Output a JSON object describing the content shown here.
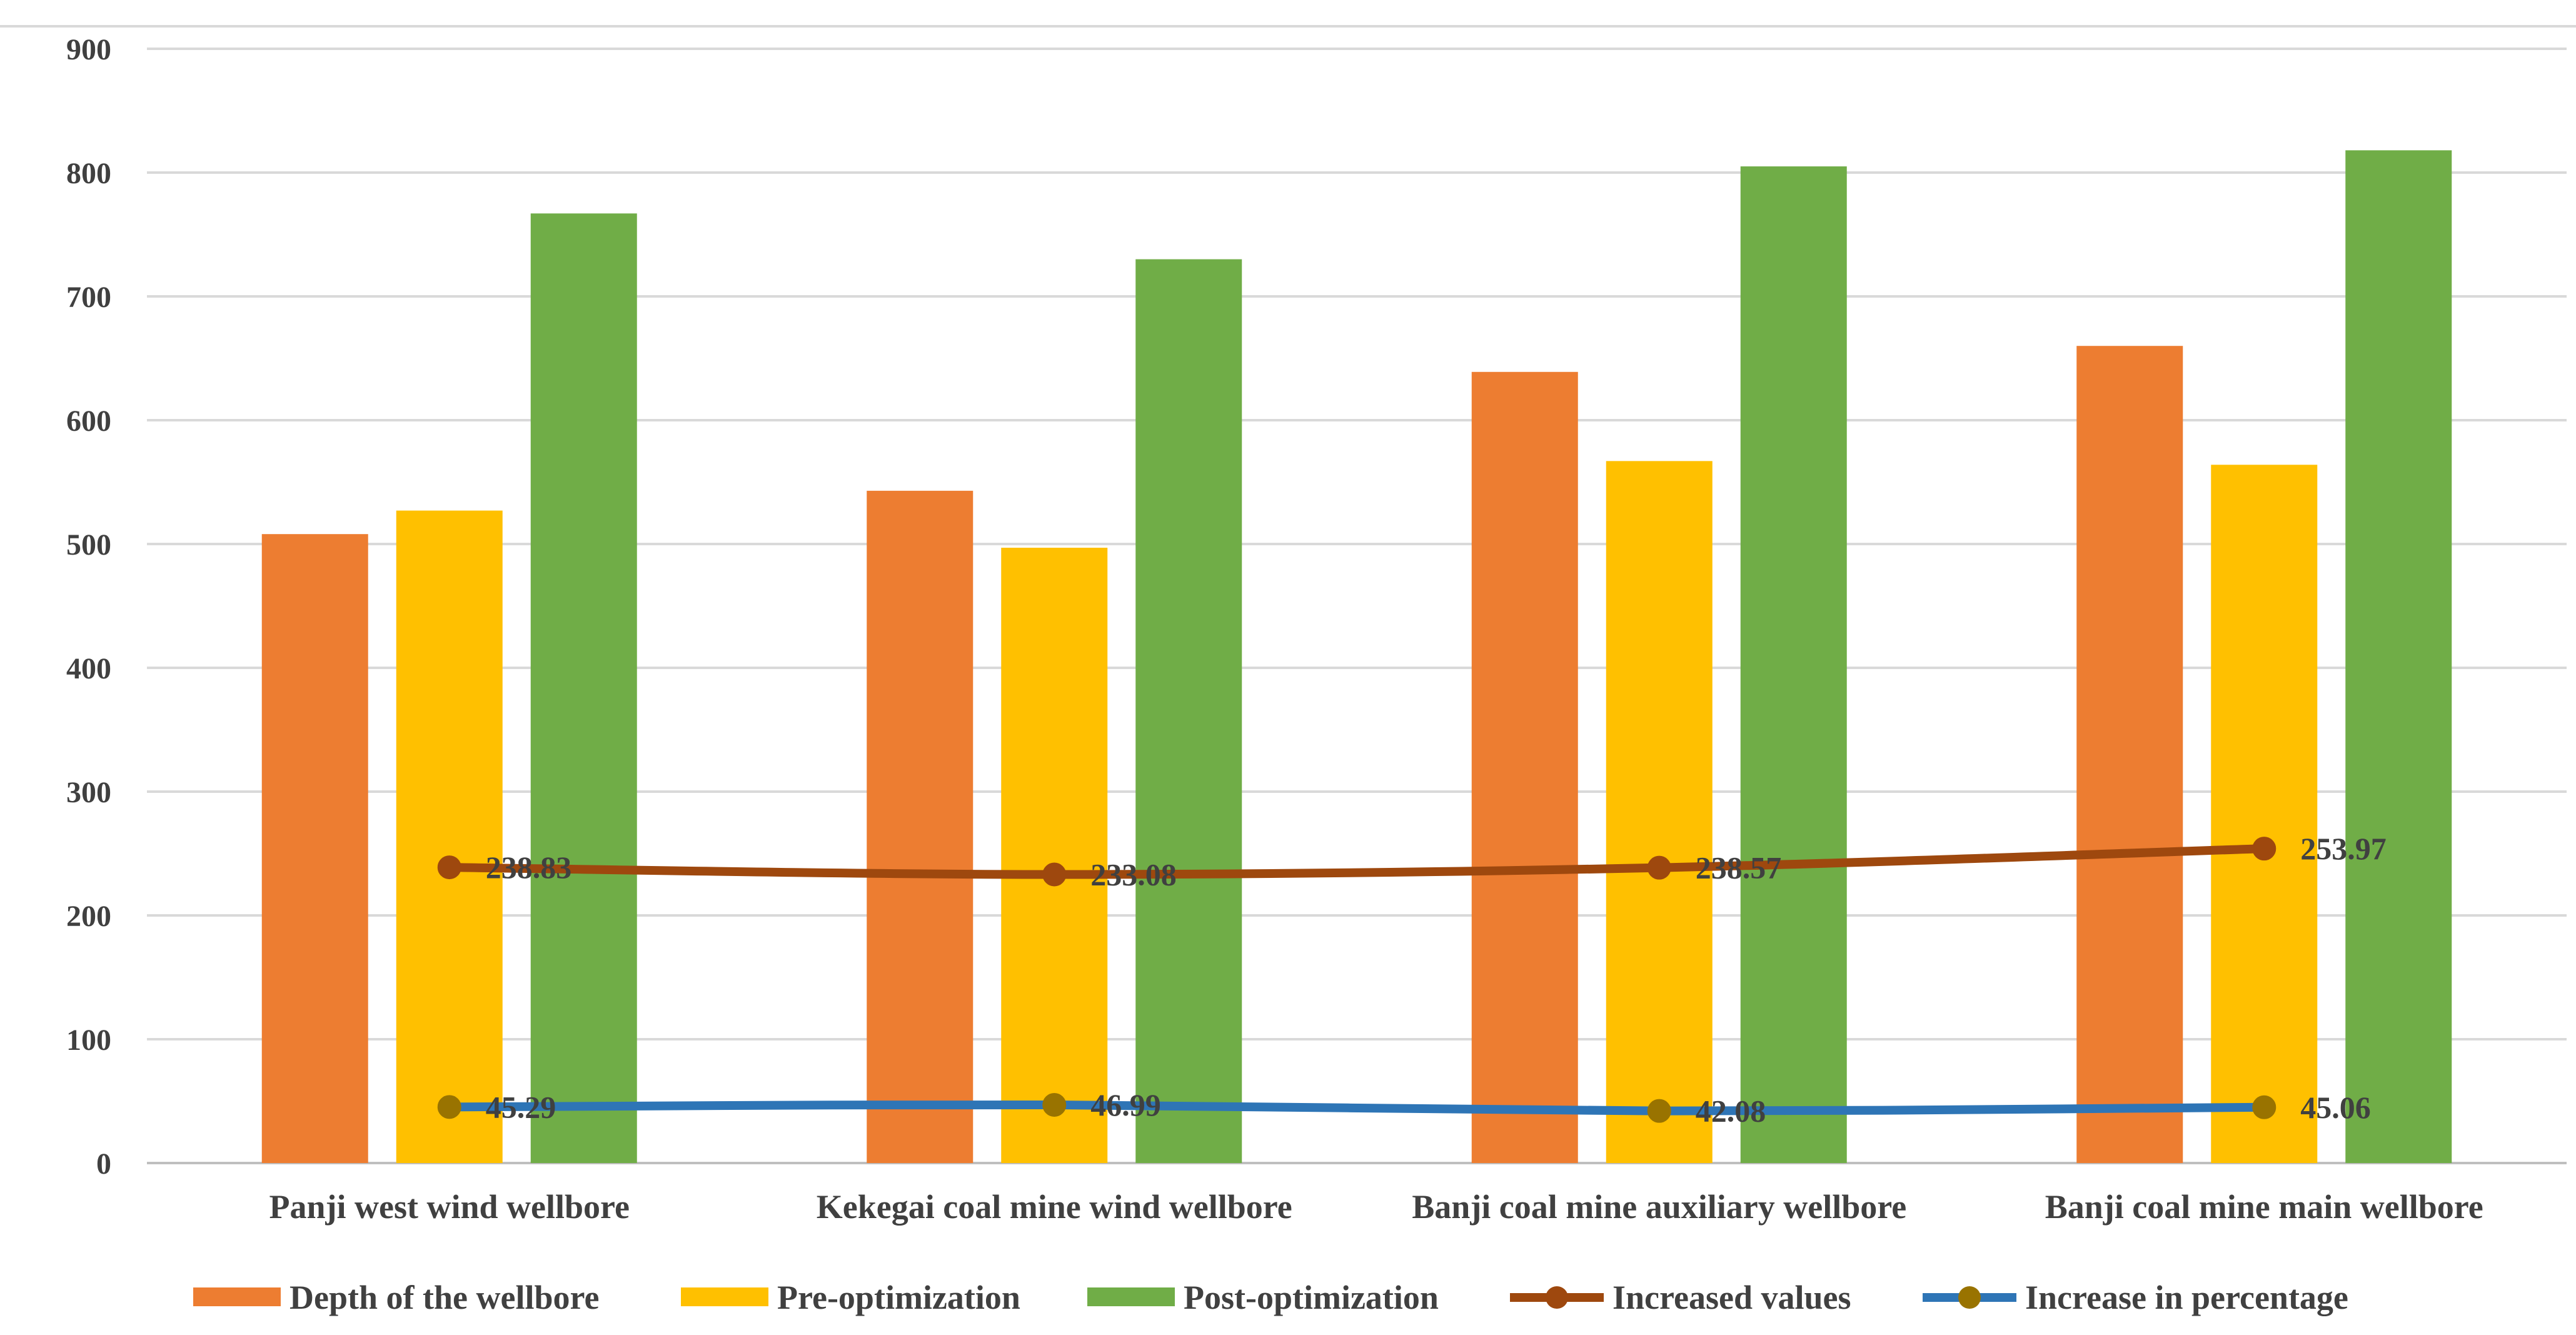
{
  "chart_data": {
    "type": "bar",
    "title": "",
    "xlabel": "",
    "ylabel": "",
    "ylim": [
      0,
      900
    ],
    "yticks": [
      0,
      100,
      200,
      300,
      400,
      500,
      600,
      700,
      800,
      900
    ],
    "grid": true,
    "legend_position": "bottom",
    "categories": [
      "Panji west wind wellbore",
      "Kekegai coal mine wind wellbore",
      "Banji coal mine auxiliary wellbore",
      "Banji coal mine main wellbore"
    ],
    "series": [
      {
        "name": "Depth of the wellbore",
        "kind": "bar",
        "color": "#ED7D31",
        "values": [
          508,
          543,
          639,
          660
        ]
      },
      {
        "name": "Pre-optimization",
        "kind": "bar",
        "color": "#FFC000",
        "values": [
          527,
          497,
          567,
          564
        ]
      },
      {
        "name": "Post-optimization",
        "kind": "bar",
        "color": "#70AD47",
        "values": [
          767,
          730,
          805,
          818
        ]
      },
      {
        "name": "Increased values",
        "kind": "line",
        "color": "#9E480E",
        "marker_color": "#9E480E",
        "values": [
          238.83,
          233.08,
          238.57,
          253.97
        ],
        "labels": [
          "238.83",
          "233.08",
          "238.57",
          "253.97"
        ]
      },
      {
        "name": "Increase in percentage",
        "kind": "line",
        "color": "#2E75B6",
        "marker_color": "#997300",
        "values": [
          45.29,
          46.99,
          42.08,
          45.06
        ],
        "labels": [
          "45.29",
          "46.99",
          "42.08",
          "45.06"
        ]
      }
    ]
  }
}
